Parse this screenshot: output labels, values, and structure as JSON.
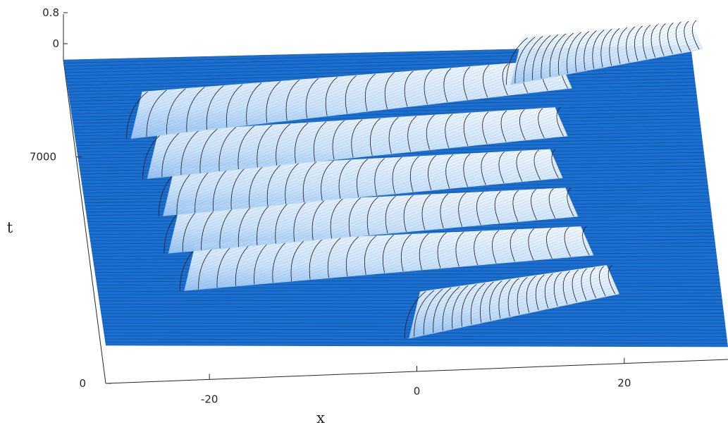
{
  "chart_data": {
    "type": "surface",
    "title": "",
    "xlabel": "x",
    "ylabel": "t",
    "zlabel": "",
    "x_ticks": [
      "-20",
      "0",
      "20"
    ],
    "x_tick_values": [
      -20,
      0,
      20
    ],
    "xlim": [
      -30,
      30
    ],
    "t_ticks": [
      "0",
      "7000"
    ],
    "t_tick_values": [
      0,
      7000
    ],
    "tlim": [
      0,
      10000
    ],
    "z_ticks": [
      "0",
      "0.8"
    ],
    "z_tick_values": [
      0,
      0.8
    ],
    "zlim": [
      0,
      0.8
    ],
    "grid": false,
    "colors": {
      "floor": "#1a6fd0",
      "peak": "#ffffff",
      "mesh": "#1b1b1b"
    },
    "bands": [
      {
        "t_start": 250,
        "t_end": 1900,
        "x_start": 0,
        "x_end": 19
      },
      {
        "t_start": 1900,
        "t_end": 3200,
        "x_start": -21,
        "x_end": 17
      },
      {
        "t_start": 3200,
        "t_end": 4500,
        "x_start": -22,
        "x_end": 16
      },
      {
        "t_start": 4500,
        "t_end": 5800,
        "x_start": -22,
        "x_end": 15
      },
      {
        "t_start": 5800,
        "t_end": 7200,
        "x_start": -23,
        "x_end": 16
      },
      {
        "t_start": 7200,
        "t_end": 8800,
        "x_start": -24,
        "x_end": 17
      },
      {
        "t_start": 8800,
        "t_end": 10000,
        "x_start": 13,
        "x_end": 30
      }
    ]
  }
}
